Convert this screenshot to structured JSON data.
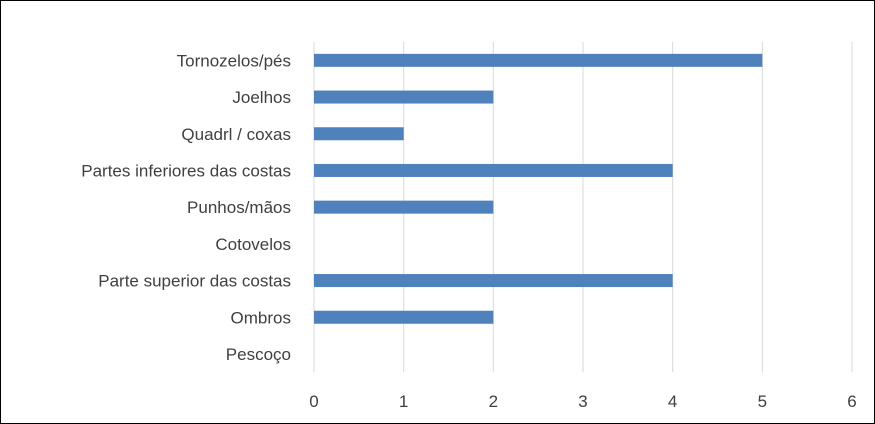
{
  "chart_data": {
    "type": "bar",
    "orientation": "horizontal",
    "categories": [
      "Tornozelos/pés",
      "Joelhos",
      "Quadrl / coxas",
      "Partes inferiores das costas",
      "Punhos/mãos",
      "Cotovelos",
      "Parte superior das costas",
      "Ombros",
      "Pescoço"
    ],
    "values": [
      5,
      2,
      1,
      4,
      2,
      0,
      4,
      2,
      0
    ],
    "x_ticks": [
      "0",
      "1",
      "2",
      "3",
      "4",
      "5",
      "6"
    ],
    "xlim": [
      0,
      6
    ],
    "grid": true,
    "legend": "none",
    "colors": {
      "bar": "#4f81bd",
      "grid": "#d9d9d9",
      "text": "#404040",
      "border": "#000000"
    }
  }
}
